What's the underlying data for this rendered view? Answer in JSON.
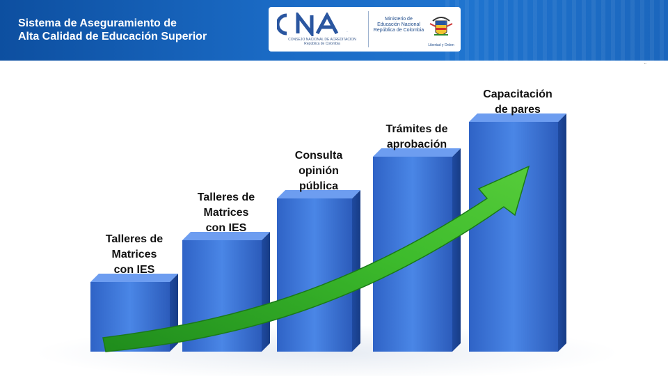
{
  "header": {
    "title_line1": "Sistema de Aseguramiento de",
    "title_line2": "Alta Calidad de Educación Superior",
    "cna_logo_text": "CNA",
    "cna_caption_line1": "CONSEJO NACIONAL DE ACREDITACIÓN",
    "cna_caption_line2": "República de Colombia",
    "ministry_line1": "Ministerio de",
    "ministry_line2": "Educación Nacional",
    "ministry_line3": "República de Colombia",
    "crest_caption": "Libertad y Orden",
    "crest_icon": "colombia-coat-of-arms-icon"
  },
  "graphic": {
    "bars": [
      {
        "lines": [
          "Talleres de",
          "Matrices",
          "con IES"
        ],
        "level": 1
      },
      {
        "lines": [
          "Talleres de",
          "Matrices",
          "con IES"
        ],
        "level": 2
      },
      {
        "lines": [
          "Consulta",
          "opinión",
          "pública"
        ],
        "level": 3
      },
      {
        "lines": [
          "Trámites de",
          "aprobación"
        ],
        "level": 4
      },
      {
        "lines": [
          "Capacitación",
          "de pares"
        ],
        "level": 5
      }
    ],
    "bar_color": "#3a73d6",
    "arrow_color": "#3fae2a",
    "arrow_icon": "growth-arrow-icon",
    "corner_mark": "¨"
  }
}
